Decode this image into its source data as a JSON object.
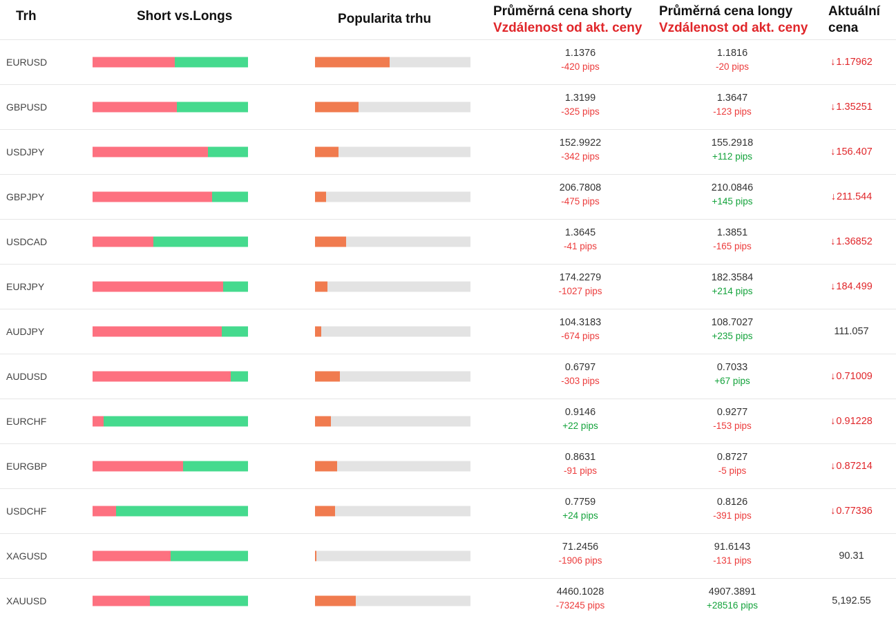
{
  "headers": {
    "market": "Trh",
    "short_vs_longs": "Short vs.Longs",
    "popularity": "Popularita trhu",
    "avg_short_line1": "Průměrná cena shorty",
    "avg_short_line2": "Vzdálenost od akt. ceny",
    "avg_long_line1": "Průměrná cena longy",
    "avg_long_line2": "Vzdálenost od akt. ceny",
    "current_line1": "Aktuální",
    "current_line2": "cena"
  },
  "colors": {
    "short": "#fd7180",
    "long": "#45da8e",
    "popularity": "#f07b4f",
    "popularity_track": "#e3e3e3",
    "negative": "#ec3b3b",
    "positive": "#12a23a",
    "down": "#e0262a"
  },
  "rows": [
    {
      "market": "EURUSD",
      "short_pct": 53,
      "popularity_pct": 48,
      "short_price": "1.1376",
      "short_pips": "-420 pips",
      "long_price": "1.1816",
      "long_pips": "-20 pips",
      "current": "1.17962",
      "direction": "down"
    },
    {
      "market": "GBPUSD",
      "short_pct": 54,
      "popularity_pct": 28,
      "short_price": "1.3199",
      "short_pips": "-325 pips",
      "long_price": "1.3647",
      "long_pips": "-123 pips",
      "current": "1.35251",
      "direction": "down"
    },
    {
      "market": "USDJPY",
      "short_pct": 74,
      "popularity_pct": 15,
      "short_price": "152.9922",
      "short_pips": "-342 pips",
      "long_price": "155.2918",
      "long_pips": "+112 pips",
      "current": "156.407",
      "direction": "down"
    },
    {
      "market": "GBPJPY",
      "short_pct": 77,
      "popularity_pct": 7,
      "short_price": "206.7808",
      "short_pips": "-475 pips",
      "long_price": "210.0846",
      "long_pips": "+145 pips",
      "current": "211.544",
      "direction": "down"
    },
    {
      "market": "USDCAD",
      "short_pct": 39,
      "popularity_pct": 20,
      "short_price": "1.3645",
      "short_pips": "-41 pips",
      "long_price": "1.3851",
      "long_pips": "-165 pips",
      "current": "1.36852",
      "direction": "down"
    },
    {
      "market": "EURJPY",
      "short_pct": 84,
      "popularity_pct": 8,
      "short_price": "174.2279",
      "short_pips": "-1027 pips",
      "long_price": "182.3584",
      "long_pips": "+214 pips",
      "current": "184.499",
      "direction": "down"
    },
    {
      "market": "AUDJPY",
      "short_pct": 83,
      "popularity_pct": 4,
      "short_price": "104.3183",
      "short_pips": "-674 pips",
      "long_price": "108.7027",
      "long_pips": "+235 pips",
      "current": "111.057",
      "direction": "none"
    },
    {
      "market": "AUDUSD",
      "short_pct": 89,
      "popularity_pct": 16,
      "short_price": "0.6797",
      "short_pips": "-303 pips",
      "long_price": "0.7033",
      "long_pips": "+67 pips",
      "current": "0.71009",
      "direction": "down"
    },
    {
      "market": "EURCHF",
      "short_pct": 7,
      "popularity_pct": 10,
      "short_price": "0.9146",
      "short_pips": "+22 pips",
      "long_price": "0.9277",
      "long_pips": "-153 pips",
      "current": "0.91228",
      "direction": "down"
    },
    {
      "market": "EURGBP",
      "short_pct": 58,
      "popularity_pct": 14,
      "short_price": "0.8631",
      "short_pips": "-91 pips",
      "long_price": "0.8727",
      "long_pips": "-5 pips",
      "current": "0.87214",
      "direction": "down"
    },
    {
      "market": "USDCHF",
      "short_pct": 15,
      "popularity_pct": 13,
      "short_price": "0.7759",
      "short_pips": "+24 pips",
      "long_price": "0.8126",
      "long_pips": "-391 pips",
      "current": "0.77336",
      "direction": "down"
    },
    {
      "market": "XAGUSD",
      "short_pct": 50,
      "popularity_pct": 1,
      "short_price": "71.2456",
      "short_pips": "-1906 pips",
      "long_price": "91.6143",
      "long_pips": "-131 pips",
      "current": "90.31",
      "direction": "none"
    },
    {
      "market": "XAUUSD",
      "short_pct": 37,
      "popularity_pct": 26,
      "short_price": "4460.1028",
      "short_pips": "-73245 pips",
      "long_price": "4907.3891",
      "long_pips": "+28516 pips",
      "current": "5,192.55",
      "direction": "none"
    }
  ]
}
